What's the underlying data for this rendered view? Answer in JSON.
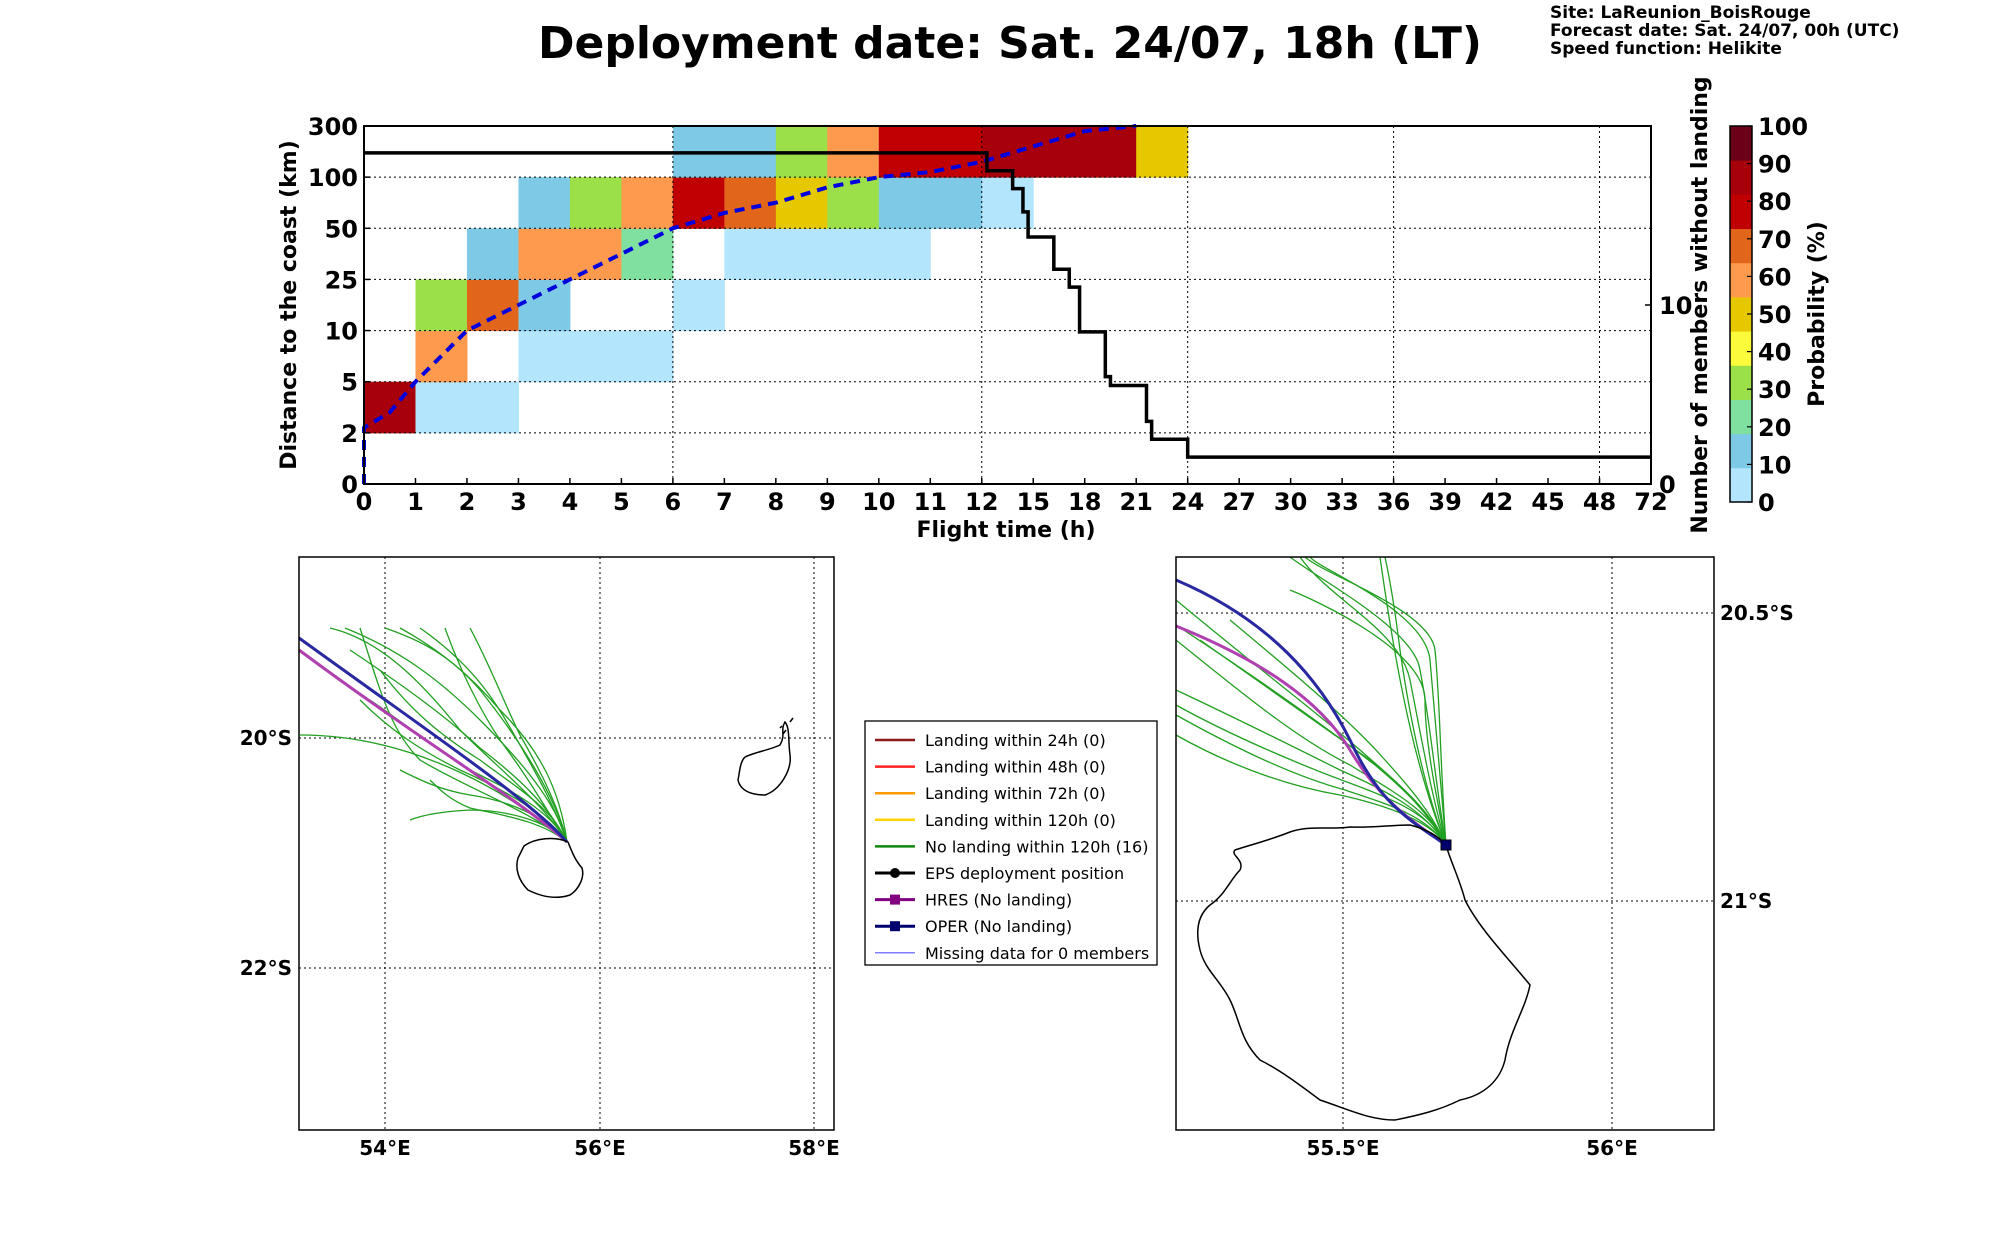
{
  "header": {
    "title": "Deployment date: Sat. 24/07, 18h (LT)",
    "site": "Site: LaReunion_BoisRouge",
    "forecast": "Forecast date: Sat. 24/07, 00h (UTC)",
    "speed": "Speed function: Helikite"
  },
  "chart_data": [
    {
      "type": "heatmap",
      "xlabel": "Flight time (h)",
      "ylabel": "Distance to the coast (km)",
      "ylabel_right": "Number of members without landing",
      "colorbar_label": "Probability (%)",
      "x_ticks": [
        "0",
        "1",
        "2",
        "3",
        "4",
        "5",
        "6",
        "7",
        "8",
        "9",
        "10",
        "11",
        "12",
        "15",
        "18",
        "21",
        "24",
        "27",
        "30",
        "33",
        "36",
        "39",
        "42",
        "45",
        "48",
        "72"
      ],
      "y_ticks": [
        "0",
        "2",
        "5",
        "10",
        "25",
        "50",
        "100",
        "300"
      ],
      "right_ticks": [
        {
          "label": "0",
          "value": 0
        },
        {
          "label": "10",
          "value": 10
        }
      ],
      "right_ylim": [
        0,
        20
      ],
      "grid": true,
      "colorbar": {
        "ticks": [
          "0",
          "10",
          "20",
          "30",
          "40",
          "50",
          "60",
          "70",
          "80",
          "90",
          "100"
        ],
        "colors": [
          "#b3e5fc",
          "#7ecae6",
          "#80e0a0",
          "#9be048",
          "#fbfb3c",
          "#e6c800",
          "#fd9a4e",
          "#e2651c",
          "#c00000",
          "#a8000a",
          "#6c0019"
        ]
      },
      "cells": [
        {
          "col": 0,
          "row": 1,
          "p": 95
        },
        {
          "col": 1,
          "row": 1,
          "p": 5
        },
        {
          "col": 2,
          "row": 1,
          "p": 5
        },
        {
          "col": 1,
          "row": 2,
          "p": 60
        },
        {
          "col": 3,
          "row": 2,
          "p": 5
        },
        {
          "col": 4,
          "row": 2,
          "p": 5
        },
        {
          "col": 5,
          "row": 2,
          "p": 5
        },
        {
          "col": 1,
          "row": 3,
          "p": 30
        },
        {
          "col": 2,
          "row": 3,
          "p": 70
        },
        {
          "col": 3,
          "row": 3,
          "p": 10
        },
        {
          "col": 6,
          "row": 3,
          "p": 5
        },
        {
          "col": 2,
          "row": 4,
          "p": 10
        },
        {
          "col": 3,
          "row": 4,
          "p": 60
        },
        {
          "col": 4,
          "row": 4,
          "p": 60
        },
        {
          "col": 5,
          "row": 4,
          "p": 20
        },
        {
          "col": 7,
          "row": 4,
          "p": 5
        },
        {
          "col": 8,
          "row": 4,
          "p": 5
        },
        {
          "col": 9,
          "row": 4,
          "p": 5
        },
        {
          "col": 10,
          "row": 4,
          "p": 5
        },
        {
          "col": 3,
          "row": 5,
          "p": 10
        },
        {
          "col": 4,
          "row": 5,
          "p": 30
        },
        {
          "col": 5,
          "row": 5,
          "p": 60
        },
        {
          "col": 6,
          "row": 5,
          "p": 80
        },
        {
          "col": 7,
          "row": 5,
          "p": 70
        },
        {
          "col": 8,
          "row": 5,
          "p": 50
        },
        {
          "col": 9,
          "row": 5,
          "p": 30
        },
        {
          "col": 10,
          "row": 5,
          "p": 10
        },
        {
          "col": 11,
          "row": 5,
          "p": 10
        },
        {
          "col": 12,
          "row": 5,
          "p": 5
        },
        {
          "col": 6,
          "row": 6,
          "p": 10
        },
        {
          "col": 7,
          "row": 6,
          "p": 10
        },
        {
          "col": 8,
          "row": 6,
          "p": 30
        },
        {
          "col": 9,
          "row": 6,
          "p": 60
        },
        {
          "col": 10,
          "row": 6,
          "p": 80
        },
        {
          "col": 11,
          "row": 6,
          "p": 80
        },
        {
          "col": 12,
          "row": 6,
          "p": 95
        },
        {
          "col": 13,
          "row": 6,
          "p": 95
        },
        {
          "col": 14,
          "row": 6,
          "p": 95
        },
        {
          "col": 15,
          "row": 6,
          "p": 50
        }
      ],
      "median_distance_line": {
        "color": "#0000dd",
        "points": [
          [
            0,
            0
          ],
          [
            0,
            1.1
          ],
          [
            0.5,
            1.4
          ],
          [
            1,
            2
          ],
          [
            1.5,
            2.5
          ],
          [
            2,
            3
          ],
          [
            3,
            3.5
          ],
          [
            4,
            4
          ],
          [
            5,
            4.5
          ],
          [
            6,
            5
          ],
          [
            7,
            5.3
          ],
          [
            8,
            5.5
          ],
          [
            9,
            5.8
          ],
          [
            10,
            6
          ],
          [
            11,
            6.1
          ],
          [
            12,
            6.3
          ],
          [
            13,
            6.6
          ],
          [
            14,
            6.9
          ],
          [
            15,
            7
          ]
        ]
      },
      "members_without_landing": {
        "color": "#000000",
        "steps": [
          [
            0,
            18.5
          ],
          [
            12.1,
            18.5
          ],
          [
            12.1,
            17.5
          ],
          [
            12.6,
            17.5
          ],
          [
            12.6,
            16.5
          ],
          [
            12.8,
            16.5
          ],
          [
            12.8,
            15.2
          ],
          [
            12.9,
            15.2
          ],
          [
            12.9,
            13.8
          ],
          [
            13.4,
            13.8
          ],
          [
            13.4,
            12
          ],
          [
            13.7,
            12
          ],
          [
            13.7,
            11
          ],
          [
            13.9,
            11
          ],
          [
            13.9,
            8.5
          ],
          [
            14.4,
            8.5
          ],
          [
            14.4,
            6
          ],
          [
            14.5,
            6
          ],
          [
            14.5,
            5.5
          ],
          [
            15.2,
            5.5
          ],
          [
            15.2,
            3.5
          ],
          [
            15.3,
            3.5
          ],
          [
            15.3,
            2.5
          ],
          [
            16,
            2.5
          ],
          [
            16,
            1.5
          ],
          [
            25,
            1.5
          ]
        ]
      }
    }
  ],
  "legend": {
    "items": [
      {
        "label": "Landing within 24h (0)",
        "color": "#8b1a1a",
        "kind": "line"
      },
      {
        "label": "Landing within 48h (0)",
        "color": "#ff2020",
        "kind": "line"
      },
      {
        "label": "Landing within 72h (0)",
        "color": "#ff9900",
        "kind": "line"
      },
      {
        "label": "Landing within 120h (0)",
        "color": "#ffd400",
        "kind": "line"
      },
      {
        "label": "No landing within 120h (16)",
        "color": "#118811",
        "kind": "line"
      },
      {
        "label": "EPS deployment position",
        "color": "#000000",
        "kind": "dot"
      },
      {
        "label": "HRES (No landing)",
        "color": "#800080",
        "kind": "square"
      },
      {
        "label": "OPER (No landing)",
        "color": "#00006e",
        "kind": "square"
      },
      {
        "label": "Missing data for 0 members",
        "color": "#5555ff",
        "kind": "thin"
      }
    ]
  },
  "maps": {
    "left": {
      "lon_ticks": [
        "54°E",
        "56°E",
        "58°E"
      ],
      "lat_ticks": [
        "20°S",
        "22°S"
      ]
    },
    "right": {
      "lon_ticks": [
        "55.5°E",
        "56°E"
      ],
      "lat_ticks": [
        "20.5°S",
        "21°S"
      ]
    }
  }
}
